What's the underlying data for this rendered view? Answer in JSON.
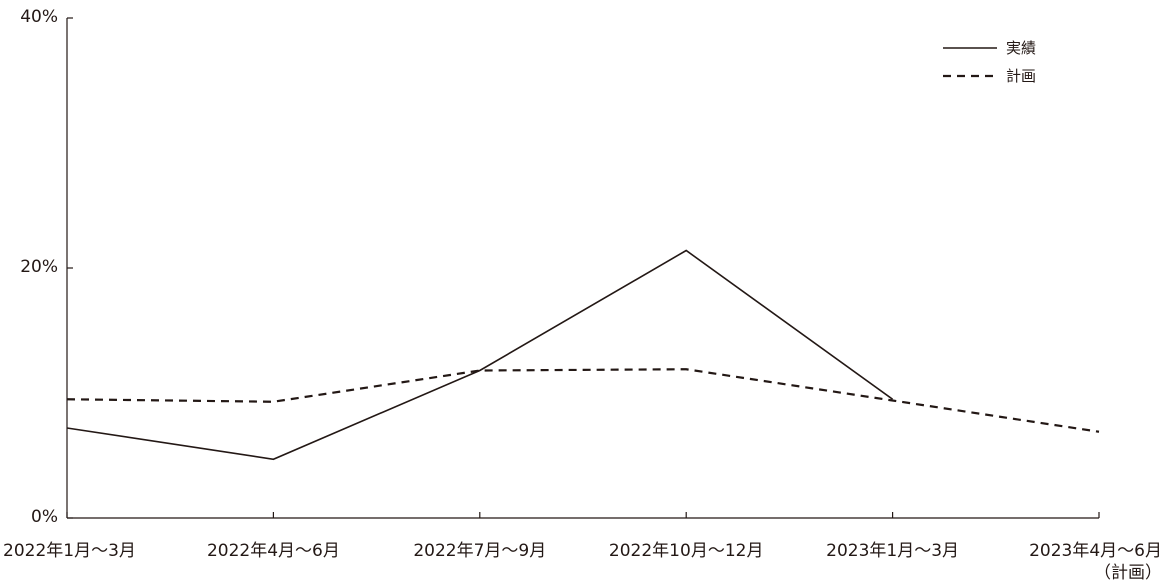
{
  "chart_data": {
    "type": "line",
    "categories": [
      "2022年1月〜3月",
      "2022年4月〜6月",
      "2022年7月〜9月",
      "2022年10月〜12月",
      "2023年1月〜3月",
      "2023年4月〜6月"
    ],
    "category_note_last": "（計画）",
    "series": [
      {
        "name": "実績",
        "style": "solid",
        "color": "#231815",
        "values": [
          7.2,
          4.7,
          11.8,
          21.4,
          9.5,
          null
        ]
      },
      {
        "name": "計画",
        "style": "dashed",
        "color": "#231815",
        "values": [
          9.5,
          9.3,
          11.8,
          11.9,
          9.4,
          6.9
        ]
      }
    ],
    "yticks": [
      "0%",
      "20%",
      "40%"
    ],
    "ylim": [
      0,
      40
    ],
    "grid": false,
    "legend_position": "top-right"
  }
}
